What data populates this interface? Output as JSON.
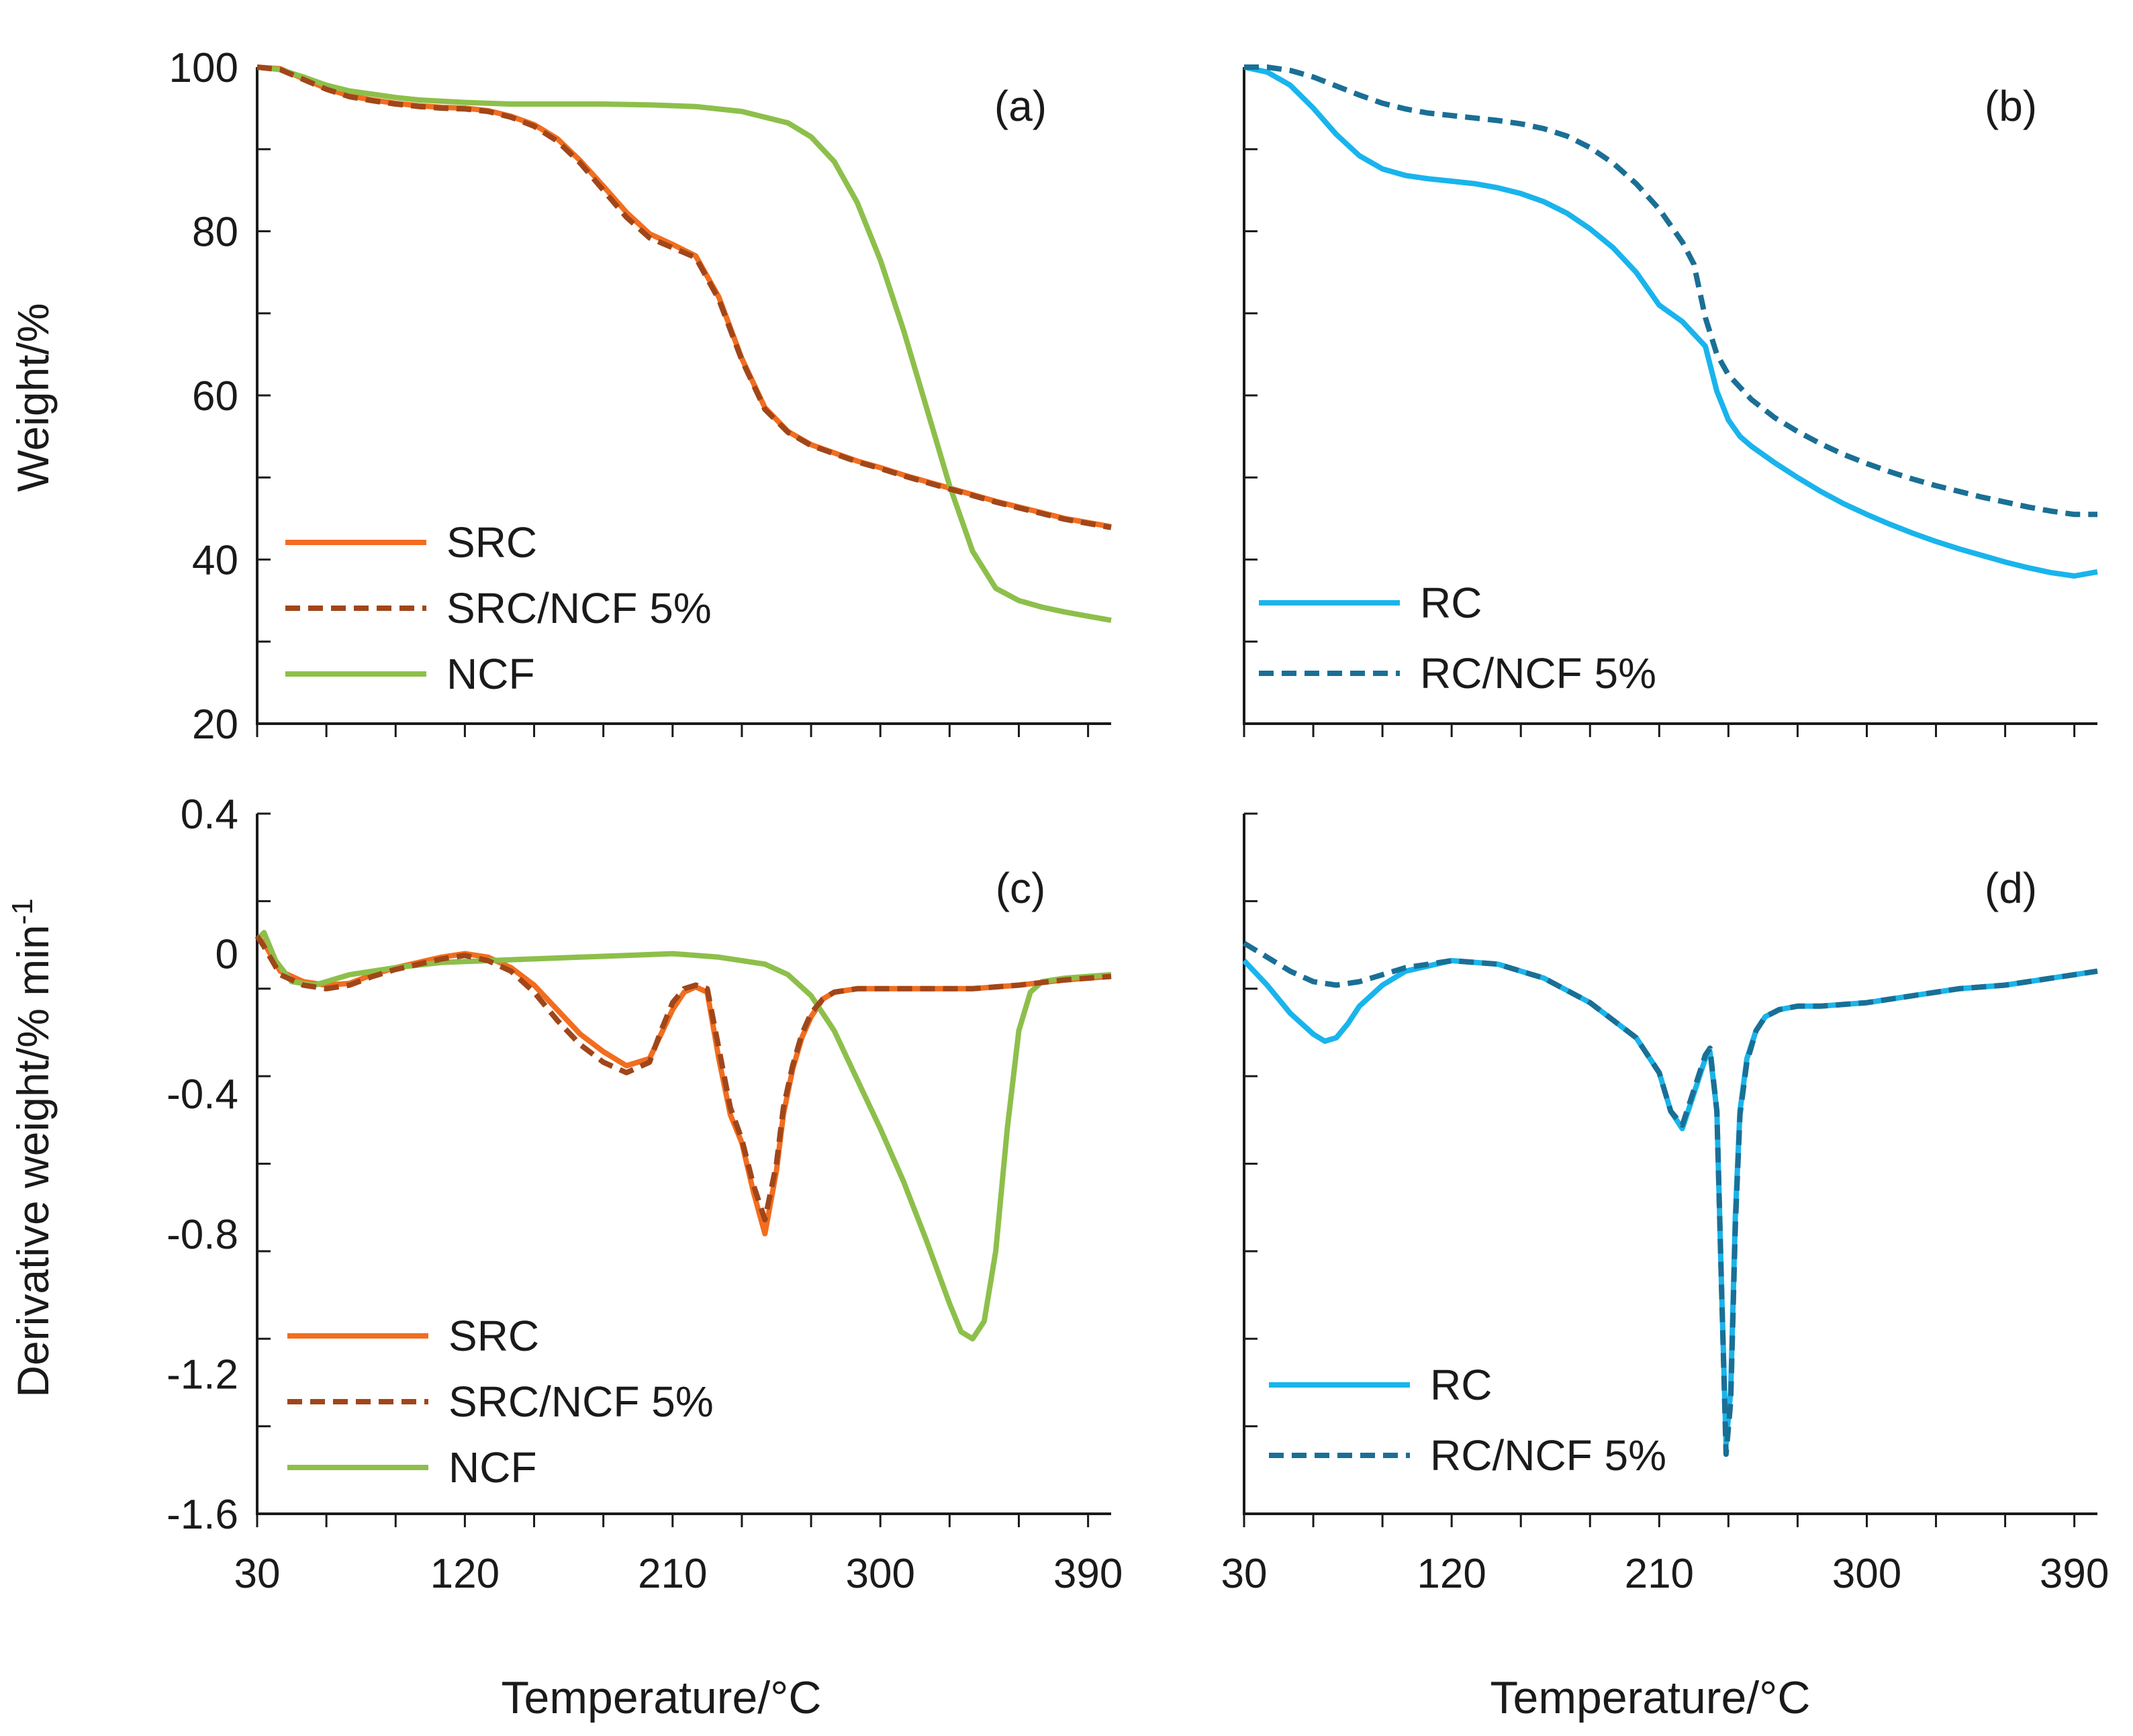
{
  "figure": {
    "y_title_top": "Weight/%",
    "y_title_bottom": "Derivative weight/% min",
    "y_title_bottom_sup": "-1",
    "x_title": "Temperature/°C"
  },
  "colors": {
    "SRC": "#f26d1f",
    "SRC/NCF 5%": "#a0461a",
    "NCF": "#8dbf4b",
    "RC": "#19b4ec",
    "RC/NCF 5%": "#1a6f95"
  },
  "chart_data": [
    {
      "id": "a",
      "type": "line",
      "panel_label": "(a)",
      "xlabel": "",
      "ylabel": "Weight/%",
      "xlim": [
        30,
        400
      ],
      "ylim": [
        20,
        100
      ],
      "xticks": [],
      "yticks": [
        "100",
        "80",
        "60",
        "40",
        "20"
      ],
      "ytick_values": [
        100,
        80,
        60,
        40,
        20
      ],
      "grid": false,
      "legend_position": "bottom-left",
      "series": [
        {
          "name": "SRC",
          "style": "solid",
          "x": [
            30,
            40,
            50,
            60,
            70,
            80,
            90,
            100,
            110,
            120,
            130,
            140,
            150,
            160,
            170,
            180,
            190,
            200,
            210,
            220,
            230,
            240,
            250,
            260,
            270,
            280,
            290,
            300,
            310,
            320,
            330,
            340,
            350,
            360,
            370,
            380,
            390,
            400
          ],
          "y": [
            100,
            99.8,
            98.6,
            97.4,
            96.5,
            96.0,
            95.6,
            95.3,
            95.1,
            95.0,
            94.7,
            94.0,
            93.0,
            91.3,
            88.6,
            85.5,
            82.3,
            79.7,
            78.4,
            77.0,
            72.0,
            64.5,
            58.5,
            55.6,
            54.0,
            53.0,
            52.0,
            51.2,
            50.3,
            49.5,
            48.7,
            47.9,
            47.1,
            46.4,
            45.7,
            45.0,
            44.5,
            44.0
          ]
        },
        {
          "name": "SRC/NCF 5%",
          "style": "dashed",
          "x": [
            30,
            40,
            50,
            60,
            70,
            80,
            90,
            100,
            110,
            120,
            130,
            140,
            150,
            160,
            170,
            180,
            190,
            200,
            210,
            220,
            230,
            240,
            250,
            260,
            270,
            280,
            290,
            300,
            310,
            320,
            330,
            340,
            350,
            360,
            370,
            380,
            390,
            400
          ],
          "y": [
            100,
            99.7,
            98.5,
            97.3,
            96.4,
            95.9,
            95.5,
            95.2,
            95.0,
            94.9,
            94.6,
            93.9,
            92.8,
            91.0,
            88.3,
            85.0,
            81.7,
            79.2,
            78.0,
            76.8,
            71.7,
            64.3,
            58.3,
            55.5,
            53.9,
            52.9,
            51.9,
            51.1,
            50.2,
            49.4,
            48.6,
            47.8,
            47.0,
            46.3,
            45.6,
            44.9,
            44.4,
            43.9
          ]
        },
        {
          "name": "NCF",
          "style": "solid",
          "x": [
            30,
            40,
            50,
            60,
            70,
            80,
            90,
            100,
            120,
            140,
            160,
            180,
            200,
            220,
            240,
            260,
            270,
            280,
            290,
            300,
            310,
            320,
            330,
            340,
            350,
            360,
            370,
            380,
            390,
            400
          ],
          "y": [
            100,
            99.7,
            98.8,
            97.8,
            97.1,
            96.7,
            96.3,
            96.0,
            95.7,
            95.5,
            95.5,
            95.5,
            95.4,
            95.2,
            94.6,
            93.2,
            91.5,
            88.5,
            83.5,
            76.5,
            68.0,
            58.5,
            49.0,
            41.0,
            36.5,
            35.0,
            34.2,
            33.6,
            33.1,
            32.6
          ]
        }
      ]
    },
    {
      "id": "b",
      "type": "line",
      "panel_label": "(b)",
      "xlabel": "",
      "ylabel": "",
      "xlim": [
        30,
        400
      ],
      "ylim": [
        20,
        100
      ],
      "xticks": [],
      "yticks": [],
      "grid": false,
      "legend_position": "bottom-left",
      "series": [
        {
          "name": "RC",
          "style": "solid",
          "x": [
            30,
            40,
            50,
            60,
            70,
            80,
            90,
            100,
            110,
            120,
            130,
            140,
            150,
            160,
            170,
            180,
            190,
            200,
            210,
            220,
            230,
            235,
            240,
            245,
            250,
            260,
            270,
            280,
            290,
            300,
            310,
            320,
            330,
            340,
            350,
            360,
            370,
            380,
            390,
            400
          ],
          "y": [
            100,
            99.4,
            97.8,
            95.0,
            91.8,
            89.2,
            87.6,
            86.8,
            86.4,
            86.1,
            85.8,
            85.3,
            84.6,
            83.6,
            82.2,
            80.3,
            78.0,
            75.0,
            71.0,
            69.0,
            66.0,
            60.5,
            57.0,
            55.0,
            53.8,
            51.8,
            50.0,
            48.3,
            46.8,
            45.5,
            44.3,
            43.2,
            42.2,
            41.3,
            40.5,
            39.7,
            39.0,
            38.4,
            38.0,
            38.5
          ]
        },
        {
          "name": "RC/NCF 5%",
          "style": "dashed",
          "x": [
            30,
            40,
            50,
            60,
            70,
            80,
            90,
            100,
            110,
            120,
            130,
            140,
            150,
            160,
            170,
            180,
            190,
            200,
            210,
            220,
            225,
            230,
            235,
            240,
            250,
            260,
            270,
            280,
            290,
            300,
            310,
            320,
            330,
            340,
            350,
            360,
            370,
            380,
            390,
            400
          ],
          "y": [
            100,
            100,
            99.6,
            98.8,
            97.7,
            96.6,
            95.6,
            94.9,
            94.4,
            94.1,
            93.8,
            93.5,
            93.1,
            92.5,
            91.6,
            90.2,
            88.3,
            85.8,
            82.7,
            78.7,
            76.0,
            69.5,
            65.0,
            62.5,
            59.5,
            57.3,
            55.6,
            54.1,
            52.8,
            51.7,
            50.7,
            49.8,
            49.0,
            48.3,
            47.6,
            47.0,
            46.4,
            45.9,
            45.5,
            45.5
          ]
        }
      ]
    },
    {
      "id": "c",
      "type": "line",
      "panel_label": "(c)",
      "xlabel": "Temperature/°C",
      "ylabel": "Derivative weight/% min-1",
      "xlim": [
        30,
        400
      ],
      "ylim": [
        -1.6,
        0.4
      ],
      "xticks": [
        "30",
        "120",
        "210",
        "300",
        "390"
      ],
      "xtick_values": [
        30,
        120,
        210,
        300,
        390
      ],
      "yticks": [
        "0.4",
        "0",
        "-0.4",
        "-0.8",
        "-1.2",
        "-1.6"
      ],
      "ytick_values": [
        0.4,
        0,
        -0.4,
        -0.8,
        -1.2,
        -1.6
      ],
      "grid": false,
      "legend_position": "bottom-left",
      "series": [
        {
          "name": "SRC",
          "style": "solid",
          "x": [
            30,
            33,
            40,
            50,
            60,
            70,
            80,
            90,
            100,
            110,
            120,
            130,
            140,
            150,
            160,
            170,
            180,
            190,
            200,
            205,
            210,
            215,
            220,
            225,
            230,
            235,
            240,
            245,
            250,
            255,
            258,
            262,
            266,
            270,
            275,
            280,
            290,
            300,
            310,
            320,
            340,
            360,
            380,
            400
          ],
          "y": [
            0.05,
            0.03,
            -0.05,
            -0.08,
            -0.09,
            -0.085,
            -0.06,
            -0.04,
            -0.025,
            -0.01,
            0,
            -0.01,
            -0.04,
            -0.09,
            -0.16,
            -0.23,
            -0.28,
            -0.32,
            -0.3,
            -0.23,
            -0.16,
            -0.11,
            -0.095,
            -0.11,
            -0.3,
            -0.46,
            -0.54,
            -0.68,
            -0.8,
            -0.62,
            -0.46,
            -0.33,
            -0.24,
            -0.18,
            -0.13,
            -0.11,
            -0.1,
            -0.1,
            -0.1,
            -0.1,
            -0.1,
            -0.09,
            -0.075,
            -0.065
          ]
        },
        {
          "name": "SRC/NCF 5%",
          "style": "dashed",
          "x": [
            30,
            33,
            40,
            50,
            60,
            70,
            80,
            90,
            100,
            110,
            120,
            130,
            140,
            150,
            160,
            170,
            180,
            190,
            200,
            205,
            210,
            215,
            220,
            225,
            230,
            235,
            240,
            245,
            250,
            255,
            258,
            262,
            266,
            270,
            275,
            280,
            290,
            300,
            310,
            320,
            340,
            360,
            380,
            400
          ],
          "y": [
            0.05,
            0.02,
            -0.06,
            -0.09,
            -0.1,
            -0.09,
            -0.065,
            -0.045,
            -0.03,
            -0.015,
            -0.005,
            -0.02,
            -0.05,
            -0.11,
            -0.19,
            -0.26,
            -0.31,
            -0.34,
            -0.31,
            -0.22,
            -0.14,
            -0.1,
            -0.09,
            -0.1,
            -0.27,
            -0.44,
            -0.53,
            -0.66,
            -0.76,
            -0.6,
            -0.44,
            -0.32,
            -0.23,
            -0.17,
            -0.13,
            -0.11,
            -0.1,
            -0.1,
            -0.1,
            -0.1,
            -0.1,
            -0.09,
            -0.075,
            -0.065
          ]
        },
        {
          "name": "NCF",
          "style": "solid",
          "x": [
            30,
            33,
            38,
            45,
            55,
            70,
            90,
            110,
            130,
            150,
            170,
            190,
            210,
            230,
            250,
            260,
            270,
            280,
            290,
            300,
            310,
            320,
            330,
            335,
            340,
            345,
            350,
            355,
            360,
            365,
            370,
            380,
            390,
            400
          ],
          "y": [
            0.04,
            0.06,
            -0.02,
            -0.08,
            -0.09,
            -0.06,
            -0.04,
            -0.025,
            -0.02,
            -0.015,
            -0.01,
            -0.005,
            0,
            -0.01,
            -0.03,
            -0.06,
            -0.12,
            -0.22,
            -0.36,
            -0.5,
            -0.65,
            -0.82,
            -1.0,
            -1.08,
            -1.1,
            -1.05,
            -0.85,
            -0.5,
            -0.22,
            -0.11,
            -0.08,
            -0.07,
            -0.065,
            -0.06
          ]
        }
      ]
    },
    {
      "id": "d",
      "type": "line",
      "panel_label": "(d)",
      "xlabel": "Temperature/°C",
      "ylabel": "",
      "xlim": [
        30,
        400
      ],
      "ylim": [
        -1.6,
        0.4
      ],
      "xticks": [
        "30",
        "120",
        "210",
        "300",
        "390"
      ],
      "xtick_values": [
        30,
        120,
        210,
        300,
        390
      ],
      "yticks": [],
      "grid": false,
      "legend_position": "bottom-left",
      "series": [
        {
          "name": "RC",
          "style": "solid",
          "x": [
            30,
            40,
            50,
            60,
            65,
            70,
            75,
            80,
            90,
            100,
            120,
            140,
            160,
            180,
            200,
            210,
            215,
            220,
            225,
            230,
            232,
            235,
            237,
            239,
            241,
            243,
            245,
            248,
            252,
            256,
            262,
            270,
            280,
            300,
            320,
            340,
            360,
            380,
            400
          ],
          "y": [
            -0.02,
            -0.09,
            -0.17,
            -0.23,
            -0.25,
            -0.24,
            -0.2,
            -0.15,
            -0.09,
            -0.05,
            -0.02,
            -0.03,
            -0.07,
            -0.14,
            -0.24,
            -0.34,
            -0.45,
            -0.5,
            -0.4,
            -0.3,
            -0.28,
            -0.45,
            -0.95,
            -1.4,
            -1.25,
            -0.75,
            -0.45,
            -0.3,
            -0.22,
            -0.18,
            -0.16,
            -0.15,
            -0.15,
            -0.14,
            -0.12,
            -0.1,
            -0.09,
            -0.07,
            -0.05
          ]
        },
        {
          "name": "RC/NCF 5%",
          "style": "dashed",
          "x": [
            30,
            40,
            50,
            60,
            70,
            80,
            90,
            100,
            120,
            140,
            160,
            180,
            200,
            210,
            215,
            220,
            225,
            230,
            232,
            235,
            237,
            239,
            241,
            243,
            245,
            248,
            252,
            256,
            262,
            270,
            280,
            300,
            320,
            340,
            360,
            380,
            400
          ],
          "y": [
            0.03,
            -0.01,
            -0.05,
            -0.08,
            -0.09,
            -0.08,
            -0.06,
            -0.04,
            -0.02,
            -0.03,
            -0.07,
            -0.14,
            -0.24,
            -0.34,
            -0.45,
            -0.49,
            -0.39,
            -0.29,
            -0.27,
            -0.45,
            -0.95,
            -1.43,
            -1.28,
            -0.78,
            -0.46,
            -0.31,
            -0.22,
            -0.18,
            -0.16,
            -0.15,
            -0.15,
            -0.14,
            -0.12,
            -0.1,
            -0.09,
            -0.07,
            -0.05
          ]
        }
      ]
    }
  ]
}
